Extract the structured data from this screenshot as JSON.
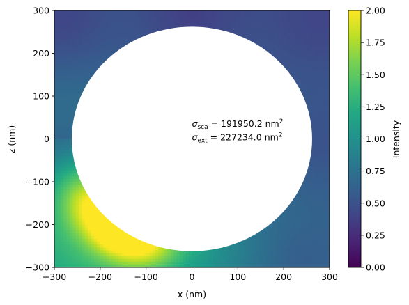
{
  "chart_data": {
    "type": "heatmap",
    "xlabel": "x (nm)",
    "ylabel": "z (nm)",
    "xlim": [
      -300,
      300
    ],
    "ylim": [
      -300,
      300
    ],
    "xticks": [
      -300,
      -200,
      -100,
      0,
      100,
      200,
      300
    ],
    "yticks": [
      -300,
      -200,
      -100,
      0,
      100,
      200,
      300
    ],
    "particle_radius_nm": 262,
    "field_description": "intensity map outside a spherical scatterer; masked (white) inside the particle",
    "colorbar": {
      "label": "Intensity",
      "range": [
        0,
        2
      ],
      "ticks": [
        "0.00",
        "0.25",
        "0.50",
        "0.75",
        "1.00",
        "1.25",
        "1.50",
        "1.75",
        "2.00"
      ],
      "colormap": "viridis"
    },
    "annotations": [
      {
        "symbol": "σ",
        "sub": "sca",
        "value": "191950.2 nm",
        "sup": "2"
      },
      {
        "symbol": "σ",
        "sub": "ext",
        "value": "227234.0 nm",
        "sup": "2"
      }
    ],
    "intensity_samples": [
      {
        "x": -280,
        "z": 280,
        "v": 0.45
      },
      {
        "x": 0,
        "z": 290,
        "v": 0.4
      },
      {
        "x": 280,
        "z": 280,
        "v": 0.45
      },
      {
        "x": 280,
        "z": 0,
        "v": 0.55
      },
      {
        "x": -280,
        "z": 0,
        "v": 0.7
      },
      {
        "x": -230,
        "z": -200,
        "v": 1.5
      },
      {
        "x": -170,
        "z": -210,
        "v": 1.8
      },
      {
        "x": 0,
        "z": -290,
        "v": 0.9
      },
      {
        "x": 250,
        "z": -280,
        "v": 0.65
      }
    ]
  }
}
